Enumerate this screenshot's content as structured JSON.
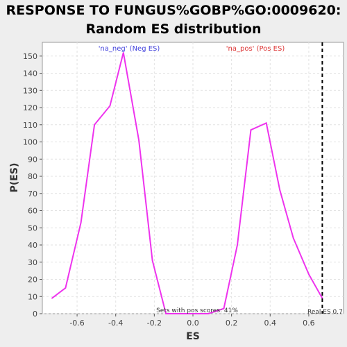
{
  "chart_data": {
    "type": "line",
    "title_line1": "RESPONSE TO FUNGUS%GOBP%GO:0009620:",
    "title_line2": "Random ES distribution",
    "xlabel": "ES",
    "ylabel": "P(ES)",
    "xlim": [
      -0.78,
      0.78
    ],
    "ylim": [
      0,
      158
    ],
    "x_ticks": [
      -0.6,
      -0.4,
      -0.2,
      0.0,
      0.2,
      0.4,
      0.6
    ],
    "x_tick_labels": [
      "-0.6",
      "-0.4",
      "-0.2",
      "0.0",
      "0.2",
      "0.4",
      "0.6"
    ],
    "y_ticks": [
      0,
      10,
      20,
      30,
      40,
      50,
      60,
      70,
      80,
      90,
      100,
      110,
      120,
      130,
      140,
      150
    ],
    "grid": true,
    "series": [
      {
        "color": "#ee33ee",
        "x": [
          -0.73,
          -0.66,
          -0.58,
          -0.51,
          -0.43,
          -0.36,
          -0.28,
          -0.21,
          -0.14,
          -0.06,
          0.01,
          0.08,
          0.16,
          0.23,
          0.3,
          0.38,
          0.45,
          0.52,
          0.6,
          0.67
        ],
        "y": [
          9,
          15,
          53,
          110,
          121,
          152,
          101,
          31,
          0,
          0,
          0,
          0,
          3,
          40,
          107,
          111,
          72,
          44,
          23,
          9
        ]
      }
    ],
    "legend_neg": "'na_neg' (Neg ES)",
    "legend_pos": "'na_pos' (Pos ES)",
    "legend_neg_color": "#4444dd",
    "legend_pos_color": "#dd3333",
    "real_es_x": 0.67,
    "real_es_label": "Real ES 0.7",
    "pos_score_label": "Sets with pos scores: 41%"
  }
}
